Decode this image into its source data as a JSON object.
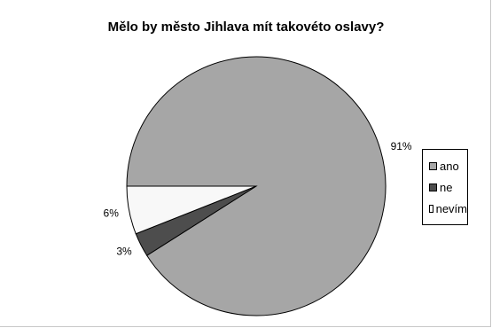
{
  "chart_data": {
    "type": "pie",
    "title": "Mělo by město Jihlava mít takovéto oslavy?",
    "slices": [
      {
        "label": "ano",
        "value": 91,
        "color": "#a6a6a6",
        "pct_label": "91%"
      },
      {
        "label": "ne",
        "value": 3,
        "color": "#4d4d4d",
        "pct_label": "3%"
      },
      {
        "label": "nevím",
        "value": 6,
        "color": "#f8f8f8",
        "pct_label": "6%"
      }
    ],
    "legend_position": "right",
    "start_angle_direction": "left, clockwise"
  }
}
